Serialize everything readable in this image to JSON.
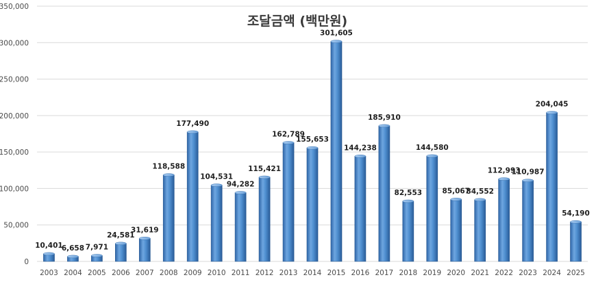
{
  "chart_data": {
    "type": "bar",
    "title": "조달금액 (백만원)",
    "xlabel": "",
    "ylabel": "",
    "ylim": [
      0,
      350000
    ],
    "yticks": [
      "0",
      "50,000",
      "100,000",
      "150,000",
      "200,000",
      "250,000",
      "300,000",
      "350,000"
    ],
    "ytick_values": [
      0,
      50000,
      100000,
      150000,
      200000,
      250000,
      300000,
      350000
    ],
    "categories": [
      "2003",
      "2004",
      "2005",
      "2006",
      "2007",
      "2008",
      "2009",
      "2010",
      "2011",
      "2012",
      "2013",
      "2014",
      "2015",
      "2016",
      "2017",
      "2018",
      "2019",
      "2020",
      "2021",
      "2022",
      "2023",
      "2024",
      "2025"
    ],
    "values": [
      10401,
      6658,
      7971,
      24581,
      31619,
      118588,
      177490,
      104531,
      94282,
      115421,
      162789,
      155653,
      301605,
      144238,
      185910,
      82553,
      144580,
      85067,
      84552,
      112993,
      110987,
      204045,
      54190
    ],
    "labels": [
      "10,401",
      "6,658",
      "7,971",
      "24,581",
      "31,619",
      "118,588",
      "177,490",
      "104,531",
      "94,282",
      "115,421",
      "162,789",
      "155,653",
      "301,605",
      "144,238",
      "185,910",
      "82,553",
      "144,580",
      "85,067",
      "84,552",
      "112,993",
      "110,987",
      "204,045",
      "54,190"
    ],
    "bar_color": "#4f8fd0",
    "grid": true,
    "legend": "none"
  }
}
